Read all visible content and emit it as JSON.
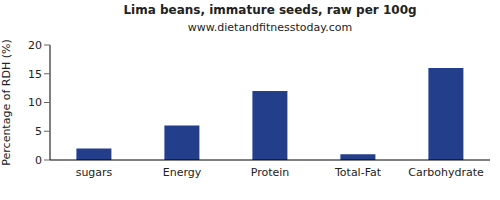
{
  "chart_data": {
    "type": "bar",
    "title": "Lima beans, immature seeds, raw per 100g",
    "subtitle": "www.dietandfitnesstoday.com",
    "y_label": "Percentage of RDH (%)",
    "categories": [
      "sugars",
      "Energy",
      "Protein",
      "Total-Fat",
      "Carbohydrate"
    ],
    "values": [
      2,
      6,
      12,
      1,
      16
    ],
    "color": "#233e8b",
    "ylim": [
      0,
      20
    ],
    "yticks": [
      0,
      5,
      10,
      15,
      20
    ],
    "grid": false
  }
}
